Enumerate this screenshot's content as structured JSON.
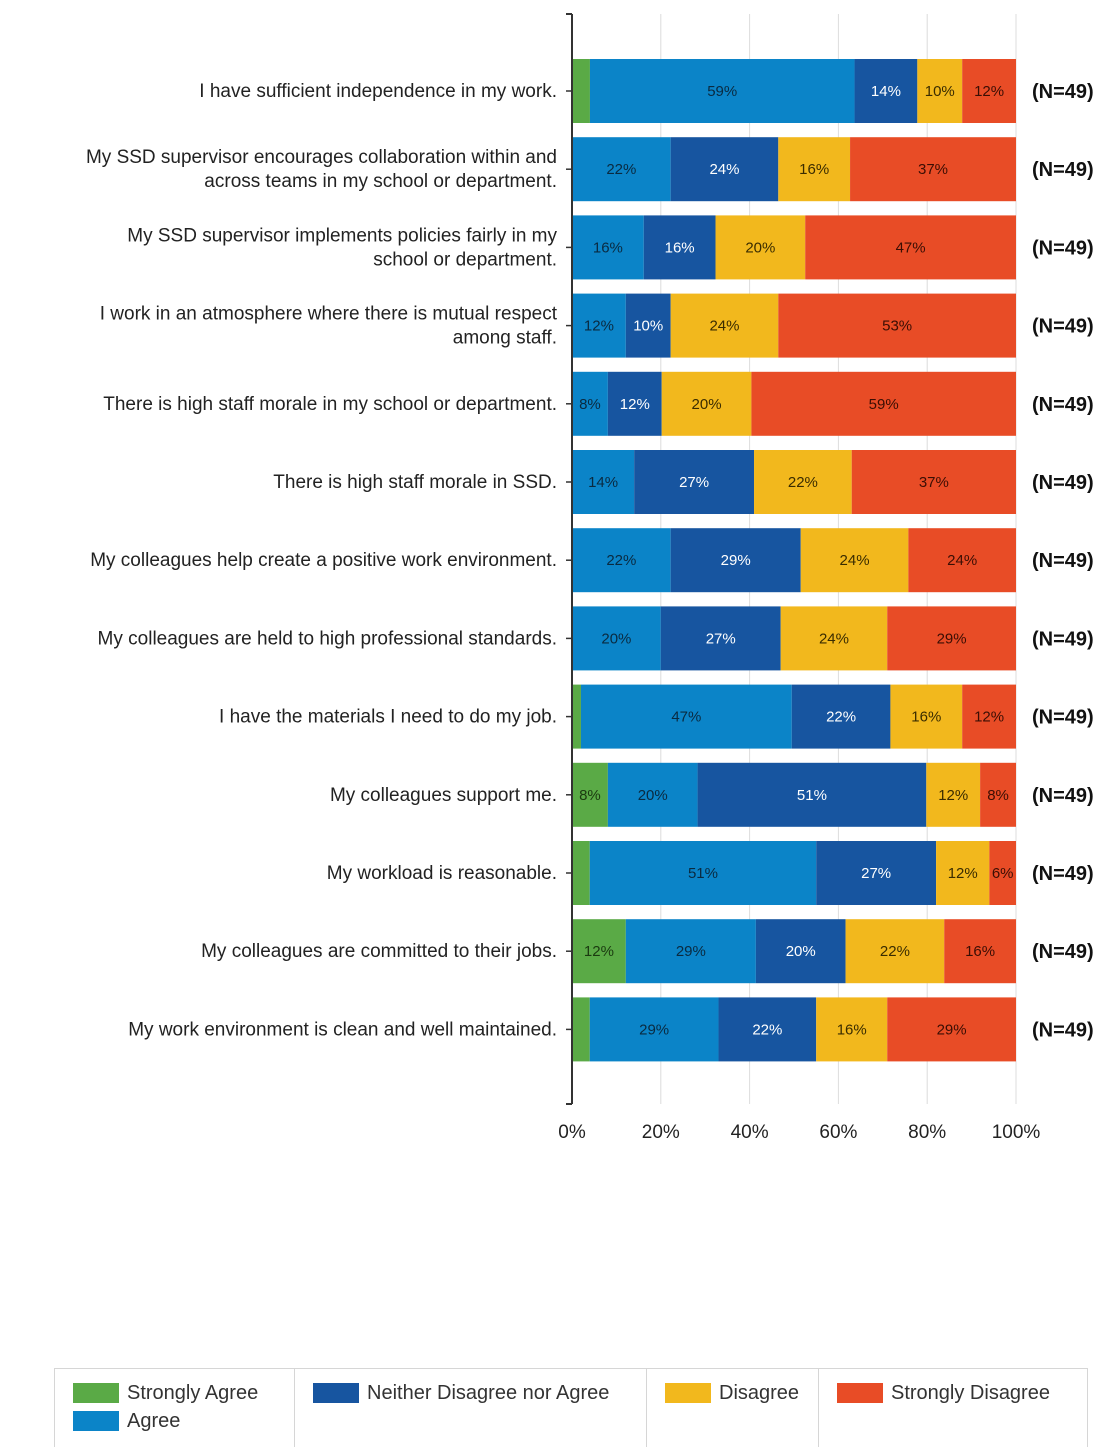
{
  "chart_data": {
    "type": "bar",
    "orientation": "horizontal",
    "stacked": "percent",
    "xlim": [
      0,
      100
    ],
    "x_ticks": [
      "0%",
      "20%",
      "40%",
      "60%",
      "80%",
      "100%"
    ],
    "grid": true,
    "legend_position": "bottom",
    "categories": [
      [
        "I have sufficient independence in my work."
      ],
      [
        "My SSD supervisor encourages collaboration within and",
        "across teams in my school or department."
      ],
      [
        "My SSD supervisor implements policies fairly in my",
        "school or department."
      ],
      [
        "I work in an atmosphere where there is mutual respect",
        "among staff."
      ],
      [
        "There is high staff morale in my school or department."
      ],
      [
        "There is high staff morale in SSD."
      ],
      [
        "My colleagues help create a positive work environment."
      ],
      [
        "My colleagues are held to high professional standards."
      ],
      [
        "I have the materials I need to do my job."
      ],
      [
        "My colleagues support me."
      ],
      [
        "My workload is reasonable."
      ],
      [
        "My colleagues are committed to their jobs."
      ],
      [
        "My work environment is clean and well maintained."
      ]
    ],
    "n_labels": [
      "(N=49)",
      "(N=49)",
      "(N=49)",
      "(N=49)",
      "(N=49)",
      "(N=49)",
      "(N=49)",
      "(N=49)",
      "(N=49)",
      "(N=49)",
      "(N=49)",
      "(N=49)",
      "(N=49)"
    ],
    "series": [
      {
        "name": "Strongly Agree",
        "color": "#5aaa46",
        "label_color": "#1b3a10",
        "values": [
          4,
          0,
          0,
          0,
          0,
          0,
          0,
          0,
          2,
          8,
          4,
          12,
          4
        ],
        "labels": [
          "",
          "",
          "",
          "",
          "",
          "",
          "",
          "",
          "",
          "8%",
          "",
          "12%",
          ""
        ]
      },
      {
        "name": "Agree",
        "color": "#0b84c8",
        "label_color": "#0a2a40",
        "values": [
          59,
          22,
          16,
          12,
          8,
          14,
          22,
          20,
          47,
          20,
          51,
          29,
          29
        ],
        "labels": [
          "59%",
          "22%",
          "16%",
          "12%",
          "8%",
          "14%",
          "22%",
          "20%",
          "47%",
          "20%",
          "51%",
          "29%",
          "29%"
        ]
      },
      {
        "name": "Neither Disagree nor Agree",
        "color": "#1755a0",
        "label_color": "#ffffff",
        "values": [
          14,
          24,
          16,
          10,
          12,
          27,
          29,
          27,
          22,
          51,
          27,
          20,
          22
        ],
        "labels": [
          "14%",
          "24%",
          "16%",
          "10%",
          "12%",
          "27%",
          "29%",
          "27%",
          "22%",
          "51%",
          "27%",
          "20%",
          "22%"
        ]
      },
      {
        "name": "Disagree",
        "color": "#f2b81d",
        "label_color": "#3a2c00",
        "values": [
          10,
          16,
          20,
          24,
          20,
          22,
          24,
          24,
          16,
          12,
          12,
          22,
          16
        ],
        "labels": [
          "10%",
          "16%",
          "20%",
          "24%",
          "20%",
          "22%",
          "24%",
          "24%",
          "16%",
          "12%",
          "12%",
          "22%",
          "16%"
        ]
      },
      {
        "name": "Strongly Disagree",
        "color": "#e84c26",
        "label_color": "#3a0e04",
        "values": [
          12,
          37,
          47,
          53,
          59,
          37,
          24,
          29,
          12,
          8,
          6,
          16,
          29
        ],
        "labels": [
          "12%",
          "37%",
          "47%",
          "53%",
          "59%",
          "37%",
          "24%",
          "29%",
          "12%",
          "8%",
          "6%",
          "16%",
          "29%"
        ]
      }
    ]
  }
}
